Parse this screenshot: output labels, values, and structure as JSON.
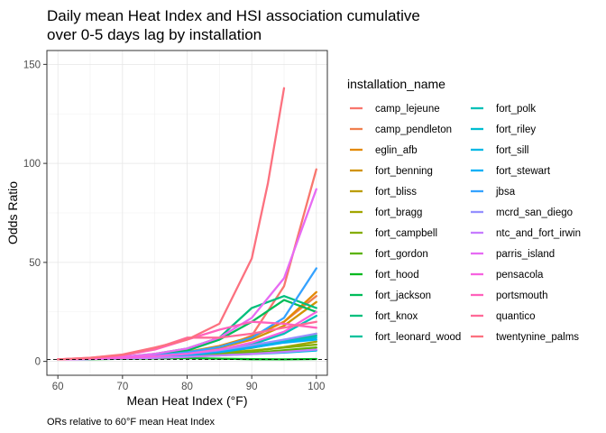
{
  "chart_data": {
    "type": "line",
    "title_lines": [
      "Daily mean Heat Index and HSI association cumulative",
      "over 0-5 days lag by installation"
    ],
    "xlabel": "Mean Heat Index (°F)",
    "ylabel": "Odds Ratio",
    "caption": "ORs relative to 60°F mean Heat Index",
    "xlim": [
      58.3,
      101.7
    ],
    "ylim": [
      -7,
      157
    ],
    "x_ticks": [
      60,
      70,
      80,
      90,
      100
    ],
    "y_ticks": [
      0,
      50,
      100,
      150
    ],
    "reference_line": 1,
    "grid": true,
    "legend_title": "installation_name",
    "legend_position": "right",
    "series": [
      {
        "name": "camp_lejeune",
        "color": "#F8766D",
        "x": [
          60,
          65,
          70,
          75,
          80,
          85,
          90,
          95,
          100
        ],
        "y": [
          1,
          1.3,
          1.8,
          2.6,
          4,
          6.5,
          13,
          38,
          97
        ]
      },
      {
        "name": "camp_pendleton",
        "color": "#F07F4E",
        "x": [
          60,
          65,
          70,
          75,
          80,
          85,
          90,
          95,
          100
        ],
        "y": [
          1,
          1.4,
          2,
          3,
          4.6,
          7.4,
          12,
          20,
          33
        ]
      },
      {
        "name": "eglin_afb",
        "color": "#E38900",
        "x": [
          60,
          65,
          70,
          75,
          80,
          85,
          90,
          95,
          100
        ],
        "y": [
          1,
          1.4,
          2,
          3,
          4.8,
          7.8,
          12.5,
          20,
          35
        ]
      },
      {
        "name": "fort_benning",
        "color": "#D19300",
        "x": [
          60,
          65,
          70,
          75,
          80,
          85,
          90,
          95,
          100
        ],
        "y": [
          1,
          1.3,
          1.9,
          2.8,
          4.3,
          7,
          11,
          18,
          30
        ]
      },
      {
        "name": "fort_bliss",
        "color": "#BB9D00",
        "x": [
          60,
          65,
          70,
          75,
          80,
          85,
          90,
          95,
          100
        ],
        "y": [
          1,
          1.3,
          1.7,
          2.3,
          3.2,
          4.6,
          6.8,
          10,
          14
        ]
      },
      {
        "name": "fort_bragg",
        "color": "#A2A500",
        "x": [
          60,
          65,
          70,
          75,
          80,
          85,
          90,
          95,
          100
        ],
        "y": [
          1,
          1.2,
          1.6,
          2.1,
          2.8,
          3.8,
          5.2,
          7.2,
          10
        ]
      },
      {
        "name": "fort_campbell",
        "color": "#85AD00",
        "x": [
          60,
          65,
          70,
          75,
          80,
          85,
          90,
          95,
          100
        ],
        "y": [
          1,
          1.3,
          1.7,
          2.3,
          3.1,
          4.2,
          5.5,
          7,
          8.5
        ]
      },
      {
        "name": "fort_gordon",
        "color": "#5BB300",
        "x": [
          60,
          65,
          70,
          75,
          80,
          85,
          90,
          95,
          100
        ],
        "y": [
          1,
          1.2,
          1.5,
          1.9,
          2.4,
          3.2,
          4.3,
          5.6,
          7
        ]
      },
      {
        "name": "fort_hood",
        "color": "#00B81F",
        "x": [
          60,
          65,
          70,
          75,
          80,
          85,
          90,
          95,
          100
        ],
        "y": [
          1,
          1.1,
          1.3,
          1.5,
          1.6,
          1.4,
          1.1,
          1,
          1.2
        ]
      },
      {
        "name": "fort_jackson",
        "color": "#00BC59",
        "x": [
          60,
          65,
          70,
          75,
          80,
          85,
          90,
          95,
          100
        ],
        "y": [
          1,
          1.4,
          2.1,
          3.4,
          5.5,
          11,
          20,
          31,
          25
        ]
      },
      {
        "name": "fort_knox",
        "color": "#00BF7D",
        "x": [
          60,
          65,
          70,
          75,
          80,
          85,
          90,
          95,
          100
        ],
        "y": [
          1,
          1.5,
          2.3,
          3.8,
          6.5,
          12,
          27,
          33,
          27
        ]
      },
      {
        "name": "fort_leonard_wood",
        "color": "#00C19C",
        "x": [
          60,
          65,
          70,
          75,
          80,
          85,
          90,
          95,
          100
        ],
        "y": [
          1,
          1.3,
          1.8,
          2.6,
          3.8,
          5.5,
          8,
          10.5,
          13
        ]
      },
      {
        "name": "fort_polk",
        "color": "#00C0B7",
        "x": [
          60,
          65,
          70,
          75,
          80,
          85,
          90,
          95,
          100
        ],
        "y": [
          1,
          1.3,
          1.8,
          2.6,
          3.7,
          5.5,
          8.5,
          14,
          23
        ]
      },
      {
        "name": "fort_riley",
        "color": "#00BDD0",
        "x": [
          60,
          65,
          70,
          75,
          80,
          85,
          90,
          95,
          100
        ],
        "y": [
          1,
          1.3,
          1.8,
          2.5,
          3.6,
          5.2,
          7.5,
          10,
          12
        ]
      },
      {
        "name": "fort_sill",
        "color": "#00B8E5",
        "x": [
          60,
          65,
          70,
          75,
          80,
          85,
          90,
          95,
          100
        ],
        "y": [
          1,
          1.2,
          1.5,
          1.9,
          2.4,
          3,
          3.7,
          4.5,
          5.5
        ]
      },
      {
        "name": "fort_stewart",
        "color": "#00B0F6",
        "x": [
          60,
          65,
          70,
          75,
          80,
          85,
          90,
          95,
          100
        ],
        "y": [
          1,
          1.3,
          1.7,
          2.3,
          3.2,
          4.6,
          7,
          9.5,
          11
        ]
      },
      {
        "name": "jbsa",
        "color": "#35A2FF",
        "x": [
          60,
          65,
          70,
          75,
          80,
          85,
          90,
          95,
          100
        ],
        "y": [
          1,
          1.4,
          2,
          3,
          4.6,
          7.3,
          12,
          22,
          47
        ]
      },
      {
        "name": "mcrd_san_diego",
        "color": "#9590FF",
        "x": [
          60,
          65,
          70,
          75,
          80,
          85,
          90,
          95,
          100
        ],
        "y": [
          1,
          1.3,
          1.8,
          2.6,
          3.8,
          5.6,
          8.2,
          11,
          14
        ]
      },
      {
        "name": "ntc_and_fort_irwin",
        "color": "#C77CFF",
        "x": [
          60,
          65,
          70,
          75,
          80,
          85,
          90,
          95,
          100
        ],
        "y": [
          1,
          1.2,
          1.5,
          1.8,
          2.3,
          3,
          3.8,
          4.8,
          6
        ]
      },
      {
        "name": "parris_island",
        "color": "#E76BF3",
        "x": [
          60,
          65,
          70,
          75,
          80,
          85,
          90,
          95,
          100
        ],
        "y": [
          1,
          1.5,
          2.3,
          3.8,
          6.5,
          12,
          22,
          42,
          87
        ]
      },
      {
        "name": "pensacola",
        "color": "#F763E0",
        "x": [
          60,
          65,
          70,
          75,
          80,
          85,
          90,
          95,
          100
        ],
        "y": [
          1,
          1.3,
          1.8,
          2.6,
          3.9,
          6,
          9.5,
          15,
          25
        ]
      },
      {
        "name": "portsmouth",
        "color": "#FF62BC",
        "x": [
          60,
          65,
          70,
          75,
          80,
          85,
          90,
          95,
          100
        ],
        "y": [
          1,
          1.6,
          3,
          6,
          11,
          16,
          20,
          19,
          17
        ]
      },
      {
        "name": "quantico",
        "color": "#FF6A98",
        "x": [
          60,
          65,
          70,
          75,
          80,
          85,
          90,
          95,
          100
        ],
        "y": [
          1,
          1.8,
          3.3,
          6.5,
          12,
          12,
          14,
          17,
          20
        ]
      },
      {
        "name": "twentynine_palms",
        "color": "#FC717F",
        "x": [
          60,
          65,
          70,
          75,
          80,
          85,
          90,
          92.5,
          95
        ],
        "y": [
          1,
          1.8,
          3.5,
          7,
          11,
          19,
          52,
          90,
          138
        ]
      }
    ]
  }
}
